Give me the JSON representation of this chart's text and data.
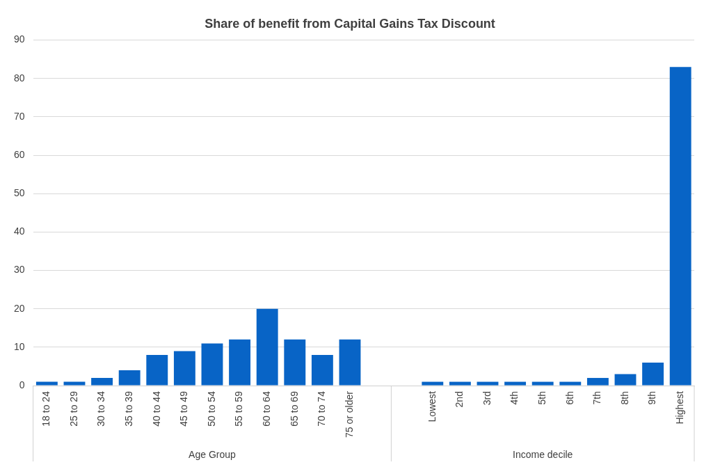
{
  "chart_data": {
    "type": "bar",
    "title": "Share of benefit from Capital Gains Tax Discount",
    "categories": [
      "18 to 24",
      "25 to 29",
      "30 to 34",
      "35 to 39",
      "40 to 44",
      "45 to 49",
      "50 to 54",
      "55 to 59",
      "60 to 64",
      "65 to 69",
      "70 to 74",
      "75 or older",
      null,
      null,
      "Lowest",
      "2nd",
      "3rd",
      "4th",
      "5th",
      "6th",
      "7th",
      "8th",
      "9th",
      "Highest"
    ],
    "values": [
      1,
      1,
      2,
      4,
      8,
      9,
      11,
      12,
      20,
      12,
      8,
      12,
      null,
      null,
      1,
      1,
      1,
      1,
      1,
      1,
      2,
      3,
      6,
      83
    ],
    "color": "#0864c6",
    "ylim": [
      0,
      90
    ],
    "yticks": [
      0,
      10,
      20,
      30,
      40,
      50,
      60,
      70,
      80,
      90
    ],
    "grid": "y",
    "legend": false,
    "annotations": [
      "Age Group",
      "Income decile"
    ]
  }
}
